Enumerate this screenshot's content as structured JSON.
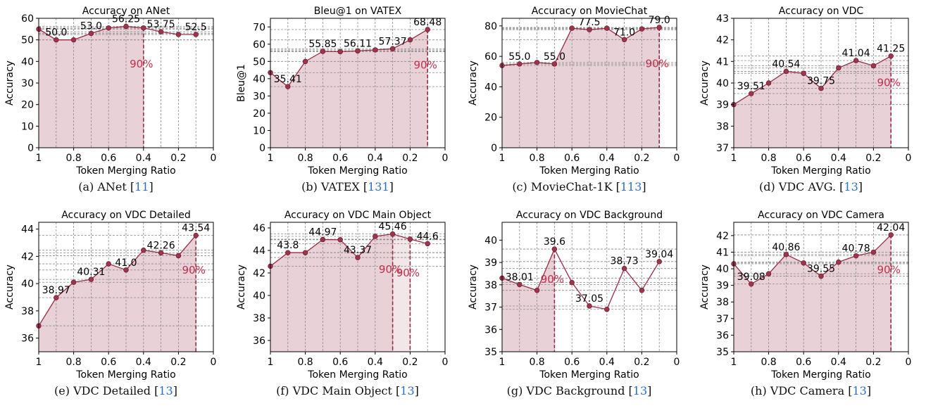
{
  "figure": {
    "xlabel": "Token Merging Ratio",
    "marker_color": "#a0344d",
    "fill_color": "#e3c7cd",
    "line_color": "#9a2a45",
    "threshold_label_color": "#c0304a"
  },
  "chart_data": [
    {
      "type": "line",
      "title": "Accuracy on ANet",
      "ylabel": "Accuracy",
      "caption": "(a) ANet [",
      "caption_ref": "11",
      "caption_end": "]",
      "xlim": [
        1.0,
        0.0
      ],
      "ylim": [
        0,
        60
      ],
      "yticks": [
        0,
        10,
        20,
        30,
        40,
        50,
        60
      ],
      "xticks": [
        1.0,
        0.8,
        0.6,
        0.4,
        0.2,
        0.0
      ],
      "x": [
        1.0,
        0.9,
        0.8,
        0.7,
        0.6,
        0.5,
        0.4,
        0.3,
        0.2,
        0.1
      ],
      "values": [
        55.0,
        50.0,
        50.0,
        53.0,
        55.5,
        56.25,
        55.5,
        53.75,
        52.5,
        52.5
      ],
      "data_labels": [
        {
          "x": 0.9,
          "y": 50.0,
          "text": "50.0"
        },
        {
          "x": 0.7,
          "y": 53.0,
          "text": "53.0"
        },
        {
          "x": 0.5,
          "y": 56.25,
          "text": "56.25"
        },
        {
          "x": 0.3,
          "y": 53.75,
          "text": "53.75"
        },
        {
          "x": 0.1,
          "y": 52.5,
          "text": "52.5"
        }
      ],
      "threshold_x": [
        0.4
      ],
      "threshold_label": "90%",
      "grid": true
    },
    {
      "type": "line",
      "title": "Bleu@1 on VATEX",
      "ylabel": "Bleu@1",
      "caption": "(b) VATEX [",
      "caption_ref": "131",
      "caption_end": "]",
      "xlim": [
        1.0,
        0.0
      ],
      "ylim": [
        0,
        75
      ],
      "yticks": [
        0,
        10,
        20,
        30,
        40,
        50,
        60,
        70
      ],
      "xticks": [
        1.0,
        0.8,
        0.6,
        0.4,
        0.2,
        0.0
      ],
      "x": [
        1.0,
        0.9,
        0.8,
        0.7,
        0.6,
        0.5,
        0.4,
        0.3,
        0.2,
        0.1
      ],
      "values": [
        43.5,
        35.41,
        50.0,
        55.85,
        55.7,
        56.11,
        56.7,
        57.37,
        62.5,
        68.48
      ],
      "data_labels": [
        {
          "x": 0.9,
          "y": 35.41,
          "text": "35.41"
        },
        {
          "x": 0.7,
          "y": 55.85,
          "text": "55.85"
        },
        {
          "x": 0.5,
          "y": 56.11,
          "text": "56.11"
        },
        {
          "x": 0.3,
          "y": 57.37,
          "text": "57.37"
        },
        {
          "x": 0.1,
          "y": 68.48,
          "text": "68.48"
        }
      ],
      "threshold_x": [
        0.1
      ],
      "threshold_label": "90%",
      "grid": true
    },
    {
      "type": "line",
      "title": "Accuracy on MovieChat",
      "ylabel": "Accuracy",
      "caption": "(c) MovieChat-1K [",
      "caption_ref": "113",
      "caption_end": "]",
      "xlim": [
        1.0,
        0.0
      ],
      "ylim": [
        0,
        85
      ],
      "yticks": [
        0,
        20,
        40,
        60,
        80
      ],
      "xticks": [
        1.0,
        0.8,
        0.6,
        0.4,
        0.2,
        0.0
      ],
      "x": [
        1.0,
        0.9,
        0.8,
        0.7,
        0.6,
        0.5,
        0.4,
        0.3,
        0.2,
        0.1
      ],
      "values": [
        54.0,
        55.0,
        56.0,
        55.0,
        78.5,
        77.5,
        78.5,
        71.0,
        78.0,
        79.0
      ],
      "data_labels": [
        {
          "x": 0.9,
          "y": 55.0,
          "text": "55.0"
        },
        {
          "x": 0.7,
          "y": 55.0,
          "text": "55.0"
        },
        {
          "x": 0.5,
          "y": 77.5,
          "text": "77.5"
        },
        {
          "x": 0.3,
          "y": 71.0,
          "text": "71.0"
        },
        {
          "x": 0.1,
          "y": 79.0,
          "text": "79.0"
        }
      ],
      "threshold_x": [
        0.1
      ],
      "threshold_label": "90%",
      "grid": true
    },
    {
      "type": "line",
      "title": "Accuracy on VDC",
      "ylabel": "Accuracy",
      "caption": "(d) VDC AVG. [",
      "caption_ref": "13",
      "caption_end": "]",
      "xlim": [
        1.0,
        0.0
      ],
      "ylim": [
        37,
        43
      ],
      "yticks": [
        37,
        38,
        39,
        40,
        41,
        42,
        43
      ],
      "xticks": [
        1.0,
        0.8,
        0.6,
        0.4,
        0.2,
        0.0
      ],
      "x": [
        1.0,
        0.9,
        0.8,
        0.7,
        0.6,
        0.5,
        0.4,
        0.3,
        0.2,
        0.1
      ],
      "values": [
        39.0,
        39.51,
        40.0,
        40.54,
        40.45,
        39.75,
        40.7,
        41.04,
        40.8,
        41.25
      ],
      "data_labels": [
        {
          "x": 0.9,
          "y": 39.51,
          "text": "39.51"
        },
        {
          "x": 0.7,
          "y": 40.54,
          "text": "40.54"
        },
        {
          "x": 0.5,
          "y": 39.75,
          "text": "39.75"
        },
        {
          "x": 0.3,
          "y": 41.04,
          "text": "41.04"
        },
        {
          "x": 0.1,
          "y": 41.25,
          "text": "41.25"
        }
      ],
      "threshold_x": [
        0.1
      ],
      "threshold_label": "90%",
      "grid": true
    },
    {
      "type": "line",
      "title": "Accuracy on VDC Detailed",
      "ylabel": "Accuracy",
      "caption": "(e) VDC Detailed [",
      "caption_ref": "13",
      "caption_end": "]",
      "xlim": [
        1.0,
        0.0
      ],
      "ylim": [
        35,
        44.5
      ],
      "yticks": [
        36,
        38,
        40,
        42,
        44
      ],
      "xticks": [
        1.0,
        0.8,
        0.6,
        0.4,
        0.2,
        0.0
      ],
      "x": [
        1.0,
        0.9,
        0.8,
        0.7,
        0.6,
        0.5,
        0.4,
        0.3,
        0.2,
        0.1
      ],
      "values": [
        36.9,
        38.97,
        40.1,
        40.31,
        41.45,
        41.0,
        42.45,
        42.26,
        42.05,
        43.54
      ],
      "data_labels": [
        {
          "x": 0.9,
          "y": 38.97,
          "text": "38.97"
        },
        {
          "x": 0.7,
          "y": 40.31,
          "text": "40.31"
        },
        {
          "x": 0.5,
          "y": 41.0,
          "text": "41.0"
        },
        {
          "x": 0.3,
          "y": 42.26,
          "text": "42.26"
        },
        {
          "x": 0.1,
          "y": 43.54,
          "text": "43.54"
        }
      ],
      "threshold_x": [
        0.1
      ],
      "threshold_label": "90%",
      "grid": true
    },
    {
      "type": "line",
      "title": "Accuracy on VDC Main Object",
      "ylabel": "Accuracy",
      "caption": "(f) VDC Main Object [",
      "caption_ref": "13",
      "caption_end": "]",
      "xlim": [
        1.0,
        0.0
      ],
      "ylim": [
        35,
        46.5
      ],
      "yticks": [
        36,
        38,
        40,
        42,
        44,
        46
      ],
      "xticks": [
        1.0,
        0.8,
        0.6,
        0.4,
        0.2,
        0.0
      ],
      "x": [
        1.0,
        0.9,
        0.8,
        0.7,
        0.6,
        0.5,
        0.4,
        0.3,
        0.2,
        0.1
      ],
      "values": [
        42.6,
        43.8,
        43.8,
        44.97,
        44.95,
        43.37,
        45.25,
        45.46,
        45.0,
        44.6
      ],
      "data_labels": [
        {
          "x": 0.9,
          "y": 43.8,
          "text": "43.8"
        },
        {
          "x": 0.7,
          "y": 44.97,
          "text": "44.97"
        },
        {
          "x": 0.5,
          "y": 43.37,
          "text": "43.37"
        },
        {
          "x": 0.3,
          "y": 45.46,
          "text": "45.46"
        },
        {
          "x": 0.1,
          "y": 44.6,
          "text": "44.6"
        }
      ],
      "threshold_x": [
        0.3,
        0.2
      ],
      "threshold_label": "90%",
      "grid": true
    },
    {
      "type": "line",
      "title": "Accuracy on VDC Background",
      "ylabel": "Accuracy",
      "caption": "(g) VDC Background [",
      "caption_ref": "13",
      "caption_end": "]",
      "xlim": [
        1.0,
        0.0
      ],
      "ylim": [
        35,
        40.8
      ],
      "yticks": [
        35,
        36,
        37,
        38,
        39,
        40
      ],
      "xticks": [
        1.0,
        0.8,
        0.6,
        0.4,
        0.2,
        0.0
      ],
      "x": [
        1.0,
        0.9,
        0.8,
        0.7,
        0.6,
        0.5,
        0.4,
        0.3,
        0.2,
        0.1
      ],
      "values": [
        38.3,
        38.01,
        37.75,
        39.6,
        38.1,
        37.05,
        36.9,
        38.73,
        37.75,
        39.04
      ],
      "data_labels": [
        {
          "x": 0.9,
          "y": 38.01,
          "text": "38.01"
        },
        {
          "x": 0.7,
          "y": 39.6,
          "text": "39.6"
        },
        {
          "x": 0.5,
          "y": 37.05,
          "text": "37.05"
        },
        {
          "x": 0.3,
          "y": 38.73,
          "text": "38.73"
        },
        {
          "x": 0.1,
          "y": 39.04,
          "text": "39.04"
        }
      ],
      "threshold_x": [
        0.7
      ],
      "threshold_label": "90%",
      "grid": true
    },
    {
      "type": "line",
      "title": "Accuracy on VDC Camera",
      "ylabel": "Accuracy",
      "caption": "(h) VDC Camera [",
      "caption_ref": "13",
      "caption_end": "]",
      "xlim": [
        1.0,
        0.0
      ],
      "ylim": [
        35,
        42.8
      ],
      "yticks": [
        35,
        36,
        37,
        38,
        39,
        40,
        41,
        42
      ],
      "xticks": [
        1.0,
        0.8,
        0.6,
        0.4,
        0.2,
        0.0
      ],
      "x": [
        1.0,
        0.9,
        0.8,
        0.7,
        0.6,
        0.5,
        0.4,
        0.3,
        0.2,
        0.1
      ],
      "values": [
        40.3,
        39.08,
        39.7,
        40.86,
        40.35,
        39.55,
        40.4,
        40.78,
        41.0,
        42.04
      ],
      "data_labels": [
        {
          "x": 0.9,
          "y": 39.08,
          "text": "39.08"
        },
        {
          "x": 0.7,
          "y": 40.86,
          "text": "40.86"
        },
        {
          "x": 0.5,
          "y": 39.55,
          "text": "39.55"
        },
        {
          "x": 0.3,
          "y": 40.78,
          "text": "40.78"
        },
        {
          "x": 0.1,
          "y": 42.04,
          "text": "42.04"
        }
      ],
      "threshold_x": [
        0.1
      ],
      "threshold_label": "90%",
      "grid": true
    }
  ]
}
